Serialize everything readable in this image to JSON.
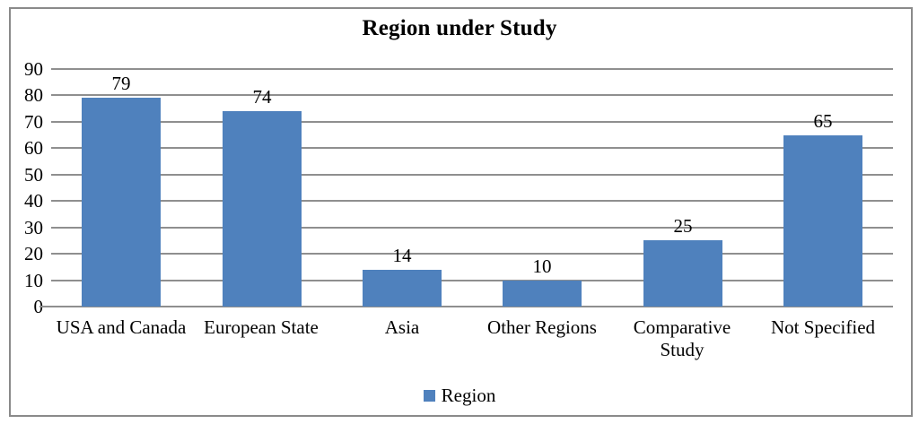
{
  "title": "Region under Study",
  "legend": {
    "label": "Region",
    "swatch_color": "#4f81bd",
    "position": "bottom"
  },
  "colors": {
    "bar": "#4f81bd",
    "gridline": "#8f8f8f",
    "chart_border": "#8a8a8a",
    "text": "#000000",
    "background": "#ffffff"
  },
  "y_axis": {
    "min": 0,
    "max": 90,
    "step": 10,
    "tick_labels": [
      "90",
      "80",
      "70",
      "60",
      "50",
      "40",
      "30",
      "20",
      "10",
      "0"
    ]
  },
  "chart_data": {
    "type": "bar",
    "title": "Region under Study",
    "series_name": "Region",
    "categories": [
      "USA and Canada",
      "European State",
      "Asia",
      "Other Regions",
      "Comparative Study",
      "Not Specified"
    ],
    "values": [
      79,
      74,
      14,
      10,
      25,
      65
    ],
    "xlabel": "",
    "ylabel": "",
    "ylim": [
      0,
      90
    ],
    "y_step": 10,
    "grid": true,
    "legend_position": "bottom",
    "bar_color": "#4f81bd"
  }
}
